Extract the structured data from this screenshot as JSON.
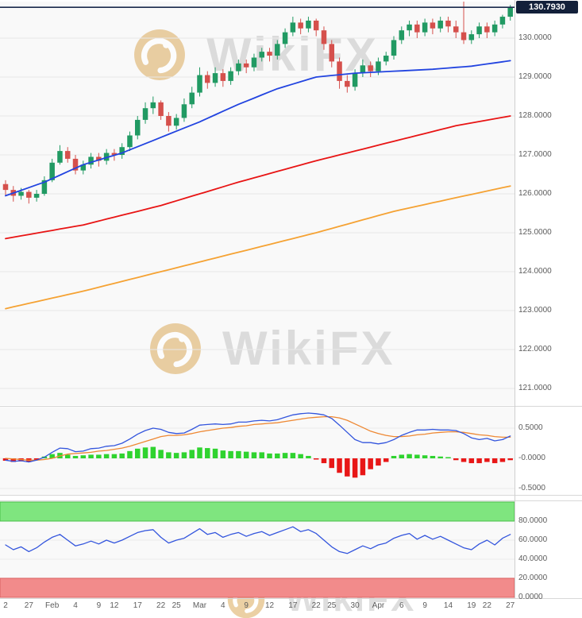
{
  "meta": {
    "watermark_text": "WikiFX",
    "price_badge": "130.7930"
  },
  "colors": {
    "candle_up": "#219a63",
    "candle_down": "#d5504c",
    "ma_fast": "#2244e0",
    "ma_mid": "#e81414",
    "ma_slow": "#f5a233",
    "macd_line": "#3355dd",
    "macd_signal": "#ee8833",
    "hist_up": "#2fd32f",
    "hist_down": "#e81717",
    "rsi_line": "#3355dd",
    "band_up_fill": "#7fe57f",
    "band_up_border": "#4ac04a",
    "band_down_fill": "#f28b8b",
    "band_down_border": "#d96060",
    "price_line": "#1b2b4d",
    "badge_bg": "#13203a",
    "grid": "#e8e8e8",
    "axis_text": "#5c5c5c"
  },
  "chart_data": [
    {
      "type": "candlestick",
      "name": "price-panel",
      "title": "",
      "last_price": 130.793,
      "ylim": [
        120.6,
        131.0
      ],
      "y_ticks": [
        {
          "label": "130.0000",
          "value": 130.0
        },
        {
          "label": "129.0000",
          "value": 129.0
        },
        {
          "label": "128.0000",
          "value": 128.0
        },
        {
          "label": "127.0000",
          "value": 127.0
        },
        {
          "label": "126.0000",
          "value": 126.0
        },
        {
          "label": "125.0000",
          "value": 125.0
        },
        {
          "label": "124.0000",
          "value": 124.0
        },
        {
          "label": "123.0000",
          "value": 123.0
        },
        {
          "label": "122.0000",
          "value": 122.0
        },
        {
          "label": "121.0000",
          "value": 121.0
        }
      ],
      "x_ticks": [
        {
          "label": "2",
          "index": 0
        },
        {
          "label": "27",
          "index": 3
        },
        {
          "label": "Feb",
          "index": 6
        },
        {
          "label": "4",
          "index": 9
        },
        {
          "label": "9",
          "index": 12
        },
        {
          "label": "12",
          "index": 14
        },
        {
          "label": "17",
          "index": 17
        },
        {
          "label": "22",
          "index": 20
        },
        {
          "label": "25",
          "index": 22
        },
        {
          "label": "Mar",
          "index": 25
        },
        {
          "label": "4",
          "index": 28
        },
        {
          "label": "9",
          "index": 31
        },
        {
          "label": "12",
          "index": 34
        },
        {
          "label": "17",
          "index": 37
        },
        {
          "label": "22",
          "index": 40
        },
        {
          "label": "25",
          "index": 42
        },
        {
          "label": "30",
          "index": 45
        },
        {
          "label": "Apr",
          "index": 48
        },
        {
          "label": "6",
          "index": 51
        },
        {
          "label": "9",
          "index": 54
        },
        {
          "label": "14",
          "index": 57
        },
        {
          "label": "19",
          "index": 60
        },
        {
          "label": "22",
          "index": 62
        },
        {
          "label": "27",
          "index": 65
        }
      ],
      "ohlc": [
        [
          126.25,
          126.35,
          125.95,
          126.1
        ],
        [
          126.1,
          126.2,
          125.8,
          125.95
        ],
        [
          125.95,
          126.15,
          125.85,
          126.05
        ],
        [
          126.05,
          126.1,
          125.75,
          125.9
        ],
        [
          125.9,
          126.1,
          125.8,
          126.0
        ],
        [
          126.0,
          126.45,
          125.95,
          126.35
        ],
        [
          126.35,
          126.9,
          126.3,
          126.8
        ],
        [
          126.8,
          127.25,
          126.75,
          127.1
        ],
        [
          127.1,
          127.2,
          126.8,
          126.9
        ],
        [
          126.9,
          127.0,
          126.5,
          126.6
        ],
        [
          126.6,
          126.85,
          126.5,
          126.75
        ],
        [
          126.75,
          127.05,
          126.65,
          126.95
        ],
        [
          126.95,
          127.05,
          126.7,
          126.85
        ],
        [
          126.85,
          127.15,
          126.75,
          127.05
        ],
        [
          127.05,
          127.15,
          126.85,
          127.0
        ],
        [
          127.0,
          127.3,
          126.9,
          127.2
        ],
        [
          127.2,
          127.6,
          127.1,
          127.5
        ],
        [
          127.5,
          128.0,
          127.4,
          127.9
        ],
        [
          127.9,
          128.35,
          127.8,
          128.2
        ],
        [
          128.2,
          128.5,
          128.05,
          128.35
        ],
        [
          128.35,
          128.4,
          127.9,
          128.0
        ],
        [
          128.0,
          128.1,
          127.6,
          127.75
        ],
        [
          127.75,
          128.05,
          127.65,
          127.95
        ],
        [
          127.95,
          128.45,
          127.85,
          128.3
        ],
        [
          128.3,
          128.75,
          128.2,
          128.6
        ],
        [
          128.6,
          129.25,
          128.5,
          129.05
        ],
        [
          129.05,
          129.15,
          128.7,
          128.85
        ],
        [
          128.85,
          129.25,
          128.75,
          129.1
        ],
        [
          129.1,
          129.2,
          128.75,
          128.9
        ],
        [
          128.9,
          129.25,
          128.8,
          129.15
        ],
        [
          129.15,
          129.45,
          129.05,
          129.35
        ],
        [
          129.35,
          129.45,
          129.1,
          129.25
        ],
        [
          129.25,
          129.6,
          129.15,
          129.5
        ],
        [
          129.5,
          129.75,
          129.4,
          129.65
        ],
        [
          129.65,
          129.75,
          129.4,
          129.55
        ],
        [
          129.55,
          129.95,
          129.45,
          129.85
        ],
        [
          129.85,
          130.25,
          129.75,
          130.15
        ],
        [
          130.15,
          130.55,
          130.05,
          130.4
        ],
        [
          130.4,
          130.5,
          130.1,
          130.25
        ],
        [
          130.25,
          130.55,
          130.15,
          130.45
        ],
        [
          130.45,
          130.5,
          130.05,
          130.2
        ],
        [
          130.2,
          130.3,
          129.7,
          129.85
        ],
        [
          129.85,
          129.95,
          129.25,
          129.4
        ],
        [
          129.4,
          129.5,
          128.7,
          128.9
        ],
        [
          128.9,
          129.05,
          128.6,
          128.75
        ],
        [
          128.75,
          129.2,
          128.65,
          129.1
        ],
        [
          129.1,
          129.45,
          129.0,
          129.3
        ],
        [
          129.3,
          129.4,
          129.0,
          129.15
        ],
        [
          129.15,
          129.5,
          129.05,
          129.4
        ],
        [
          129.4,
          129.65,
          129.3,
          129.55
        ],
        [
          129.55,
          130.05,
          129.45,
          129.95
        ],
        [
          129.95,
          130.3,
          129.85,
          130.2
        ],
        [
          130.2,
          130.45,
          130.05,
          130.35
        ],
        [
          130.35,
          130.45,
          130.0,
          130.15
        ],
        [
          130.15,
          130.5,
          130.05,
          130.4
        ],
        [
          130.4,
          130.5,
          130.1,
          130.25
        ],
        [
          130.25,
          130.55,
          130.15,
          130.45
        ],
        [
          130.45,
          130.55,
          130.15,
          130.3
        ],
        [
          130.3,
          130.45,
          130.0,
          130.15
        ],
        [
          130.15,
          130.95,
          129.85,
          129.95
        ],
        [
          129.95,
          130.2,
          129.85,
          130.1
        ],
        [
          130.1,
          130.4,
          130.0,
          130.3
        ],
        [
          130.3,
          130.4,
          130.0,
          130.15
        ],
        [
          130.15,
          130.45,
          130.05,
          130.35
        ],
        [
          130.35,
          130.6,
          130.25,
          130.55
        ],
        [
          130.55,
          130.85,
          130.45,
          130.79
        ]
      ],
      "overlays": [
        {
          "name": "ma-fast",
          "color_key": "ma_fast",
          "points": [
            [
              0,
              125.95
            ],
            [
              5,
              126.3
            ],
            [
              10,
              126.75
            ],
            [
              15,
              127.05
            ],
            [
              20,
              127.45
            ],
            [
              25,
              127.85
            ],
            [
              30,
              128.3
            ],
            [
              35,
              128.7
            ],
            [
              40,
              129.0
            ],
            [
              45,
              129.1
            ],
            [
              50,
              129.15
            ],
            [
              55,
              129.2
            ],
            [
              60,
              129.28
            ],
            [
              65,
              129.42
            ]
          ]
        },
        {
          "name": "ma-mid",
          "color_key": "ma_mid",
          "points": [
            [
              0,
              124.85
            ],
            [
              10,
              125.2
            ],
            [
              20,
              125.7
            ],
            [
              30,
              126.3
            ],
            [
              40,
              126.85
            ],
            [
              50,
              127.35
            ],
            [
              58,
              127.75
            ],
            [
              65,
              128.0
            ]
          ]
        },
        {
          "name": "ma-slow",
          "color_key": "ma_slow",
          "points": [
            [
              0,
              123.05
            ],
            [
              10,
              123.5
            ],
            [
              20,
              124.0
            ],
            [
              30,
              124.5
            ],
            [
              40,
              125.0
            ],
            [
              50,
              125.55
            ],
            [
              58,
              125.9
            ],
            [
              65,
              126.2
            ]
          ]
        }
      ]
    },
    {
      "type": "macd",
      "name": "macd-panel",
      "ylim": [
        -0.7,
        0.85
      ],
      "y_ticks": [
        {
          "label": "0.5000",
          "value": 0.5
        },
        {
          "label": "-0.0000",
          "value": 0.0
        },
        {
          "label": "-0.5000",
          "value": -0.5
        }
      ],
      "macd": [
        -0.03,
        -0.05,
        -0.04,
        -0.06,
        -0.03,
        0.02,
        0.1,
        0.17,
        0.16,
        0.11,
        0.12,
        0.16,
        0.17,
        0.2,
        0.21,
        0.25,
        0.32,
        0.4,
        0.46,
        0.5,
        0.48,
        0.43,
        0.41,
        0.42,
        0.48,
        0.55,
        0.56,
        0.57,
        0.56,
        0.57,
        0.6,
        0.6,
        0.62,
        0.63,
        0.62,
        0.64,
        0.68,
        0.72,
        0.74,
        0.75,
        0.74,
        0.72,
        0.66,
        0.55,
        0.43,
        0.31,
        0.26,
        0.26,
        0.24,
        0.26,
        0.31,
        0.38,
        0.43,
        0.47,
        0.47,
        0.48,
        0.47,
        0.47,
        0.46,
        0.41,
        0.34,
        0.31,
        0.33,
        0.29,
        0.31,
        0.37
      ],
      "signal": [
        0.0,
        -0.01,
        -0.02,
        -0.03,
        -0.03,
        -0.02,
        0.0,
        0.04,
        0.07,
        0.08,
        0.09,
        0.1,
        0.12,
        0.13,
        0.15,
        0.17,
        0.2,
        0.24,
        0.28,
        0.32,
        0.36,
        0.38,
        0.38,
        0.39,
        0.41,
        0.44,
        0.46,
        0.48,
        0.5,
        0.51,
        0.53,
        0.54,
        0.56,
        0.57,
        0.58,
        0.59,
        0.61,
        0.63,
        0.65,
        0.67,
        0.68,
        0.69,
        0.69,
        0.67,
        0.63,
        0.57,
        0.51,
        0.45,
        0.41,
        0.38,
        0.36,
        0.36,
        0.37,
        0.39,
        0.4,
        0.42,
        0.43,
        0.44,
        0.44,
        0.43,
        0.41,
        0.39,
        0.38,
        0.36,
        0.35,
        0.35
      ],
      "histogram": [
        -0.04,
        -0.06,
        -0.05,
        -0.06,
        -0.03,
        0.03,
        0.07,
        0.09,
        0.06,
        0.04,
        0.05,
        0.06,
        0.06,
        0.07,
        0.07,
        0.08,
        0.12,
        0.16,
        0.18,
        0.19,
        0.14,
        0.1,
        0.09,
        0.1,
        0.14,
        0.18,
        0.17,
        0.16,
        0.13,
        0.12,
        0.12,
        0.11,
        0.1,
        0.1,
        0.08,
        0.08,
        0.09,
        0.09,
        0.07,
        0.04,
        -0.02,
        -0.08,
        -0.16,
        -0.24,
        -0.3,
        -0.32,
        -0.28,
        -0.18,
        -0.12,
        -0.06,
        0.04,
        0.06,
        0.07,
        0.06,
        0.05,
        0.04,
        0.03,
        0.02,
        -0.03,
        -0.06,
        -0.08,
        -0.08,
        -0.06,
        -0.08,
        -0.06,
        -0.03
      ]
    },
    {
      "type": "rsi",
      "name": "oscillator-panel",
      "ylim": [
        0,
        100
      ],
      "overbought_band": [
        80,
        100
      ],
      "oversold_band": [
        0,
        20
      ],
      "y_ticks": [
        {
          "label": "80.0000",
          "value": 80
        },
        {
          "label": "60.0000",
          "value": 60
        },
        {
          "label": "40.0000",
          "value": 40
        },
        {
          "label": "20.0000",
          "value": 20
        },
        {
          "label": "0.0000",
          "value": 0
        }
      ],
      "values": [
        55,
        50,
        53,
        48,
        52,
        58,
        63,
        66,
        60,
        54,
        56,
        59,
        56,
        60,
        57,
        60,
        64,
        68,
        70,
        71,
        63,
        57,
        60,
        62,
        67,
        72,
        66,
        68,
        63,
        66,
        68,
        64,
        67,
        69,
        65,
        68,
        71,
        74,
        69,
        71,
        67,
        60,
        53,
        48,
        46,
        50,
        54,
        51,
        55,
        57,
        62,
        65,
        67,
        61,
        65,
        61,
        64,
        60,
        56,
        52,
        50,
        56,
        60,
        55,
        62,
        66
      ]
    }
  ]
}
